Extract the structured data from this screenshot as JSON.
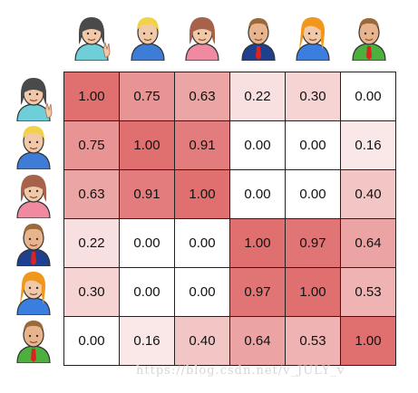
{
  "chart_data": {
    "type": "heatmap",
    "rows": [
      "girl-dark-hair",
      "boy-blond",
      "girl-brown-hair",
      "man-suit",
      "woman-orange-hair",
      "man-green-shirt"
    ],
    "columns": [
      "girl-dark-hair",
      "boy-blond",
      "girl-brown-hair",
      "man-suit",
      "woman-orange-hair",
      "man-green-shirt"
    ],
    "values": [
      [
        "1.00",
        "0.75",
        "0.63",
        "0.22",
        "0.30",
        "0.00"
      ],
      [
        "0.75",
        "1.00",
        "0.91",
        "0.00",
        "0.00",
        "0.16"
      ],
      [
        "0.63",
        "0.91",
        "1.00",
        "0.00",
        "0.00",
        "0.40"
      ],
      [
        "0.22",
        "0.00",
        "0.00",
        "1.00",
        "0.97",
        "0.64"
      ],
      [
        "0.30",
        "0.00",
        "0.00",
        "0.97",
        "1.00",
        "0.53"
      ],
      [
        "0.00",
        "0.16",
        "0.40",
        "0.64",
        "0.53",
        "1.00"
      ]
    ],
    "colormap": {
      "low": "#ffffff",
      "high": "#e07070"
    }
  },
  "people": [
    {
      "icon": "girl-dark-hair-icon",
      "hair": "#4a4a4a",
      "skin": "#f2c9a8",
      "shirt": "#6ecfd9"
    },
    {
      "icon": "boy-blond-icon",
      "hair": "#f2d24a",
      "skin": "#f2c9a8",
      "shirt": "#3d7dd8"
    },
    {
      "icon": "girl-brown-hair-icon",
      "hair": "#a6624a",
      "skin": "#f2c9a8",
      "shirt": "#f08aa0"
    },
    {
      "icon": "man-suit-icon",
      "hair": "#9a6a3a",
      "skin": "#e8b48e",
      "shirt": "#1f3f8f"
    },
    {
      "icon": "woman-orange-hair-icon",
      "hair": "#f0981e",
      "skin": "#f2c9a8",
      "shirt": "#3a7fe0"
    },
    {
      "icon": "man-green-shirt-icon",
      "hair": "#9a6a3a",
      "skin": "#e8b48e",
      "shirt": "#4caf3e"
    }
  ],
  "watermark": "https://blog.csdn.net/v_JULY_v"
}
